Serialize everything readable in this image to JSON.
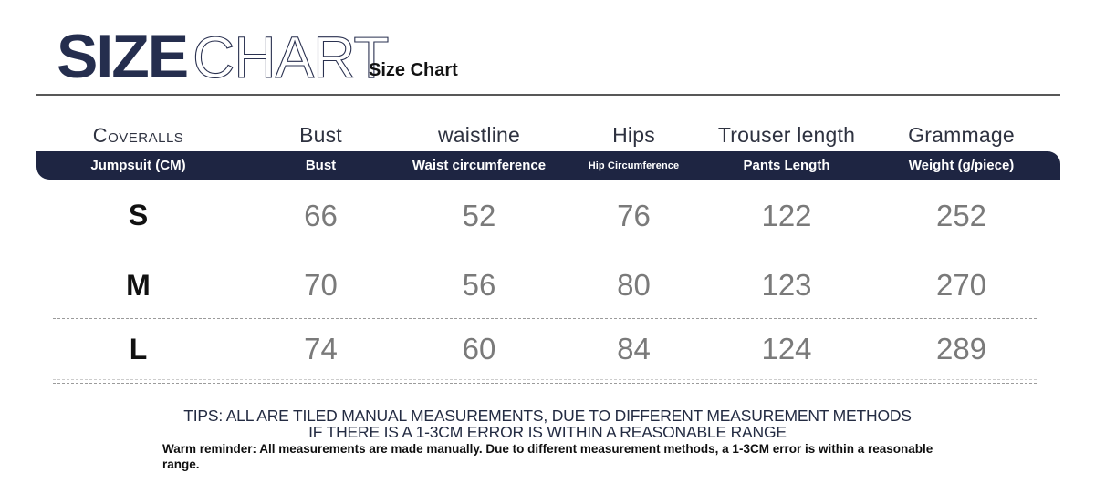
{
  "header": {
    "logo_primary": "SIZE",
    "logo_secondary": "CHART",
    "subtitle": "Size Chart"
  },
  "table": {
    "top_labels": [
      "Coveralls",
      "Bust",
      "waistline",
      "Hips",
      "Trouser length",
      "Grammage"
    ],
    "header_row": [
      "Jumpsuit (CM)",
      "Bust",
      "Waist circumference",
      "Hip Circumference",
      "Pants Length",
      "Weight (g/piece)"
    ],
    "rows": [
      {
        "size": "S",
        "values": [
          "66",
          "52",
          "76",
          "122",
          "252"
        ]
      },
      {
        "size": "M",
        "values": [
          "70",
          "56",
          "80",
          "123",
          "270"
        ]
      },
      {
        "size": "L",
        "values": [
          "74",
          "60",
          "84",
          "124",
          "289"
        ]
      }
    ]
  },
  "tips": {
    "line1": "TIPS: ALL ARE TILED MANUAL MEASUREMENTS, DUE TO DIFFERENT MEASUREMENT METHODS",
    "line2": "IF THERE IS A 1-3CM ERROR IS WITHIN A REASONABLE RANGE",
    "warm_line1": "Warm reminder: All measurements are made manually. Due to different measurement methods, a 1-3CM error is within a reasonable",
    "warm_line2": "range."
  },
  "colors": {
    "brand_navy": "#252e4e",
    "header_bar_bg": "#1e2542",
    "header_bar_text": "#ffffff",
    "value_gray": "#7a7a7a",
    "tips_navy": "#232b42"
  },
  "chart_data": {
    "type": "table",
    "title": "Size Chart",
    "columns": [
      "Jumpsuit (CM)",
      "Bust",
      "Waist circumference",
      "Hip Circumference",
      "Pants Length",
      "Weight (g/piece)"
    ],
    "rows": [
      [
        "S",
        66,
        52,
        76,
        122,
        252
      ],
      [
        "M",
        70,
        56,
        80,
        123,
        270
      ],
      [
        "L",
        74,
        60,
        84,
        124,
        289
      ]
    ]
  }
}
